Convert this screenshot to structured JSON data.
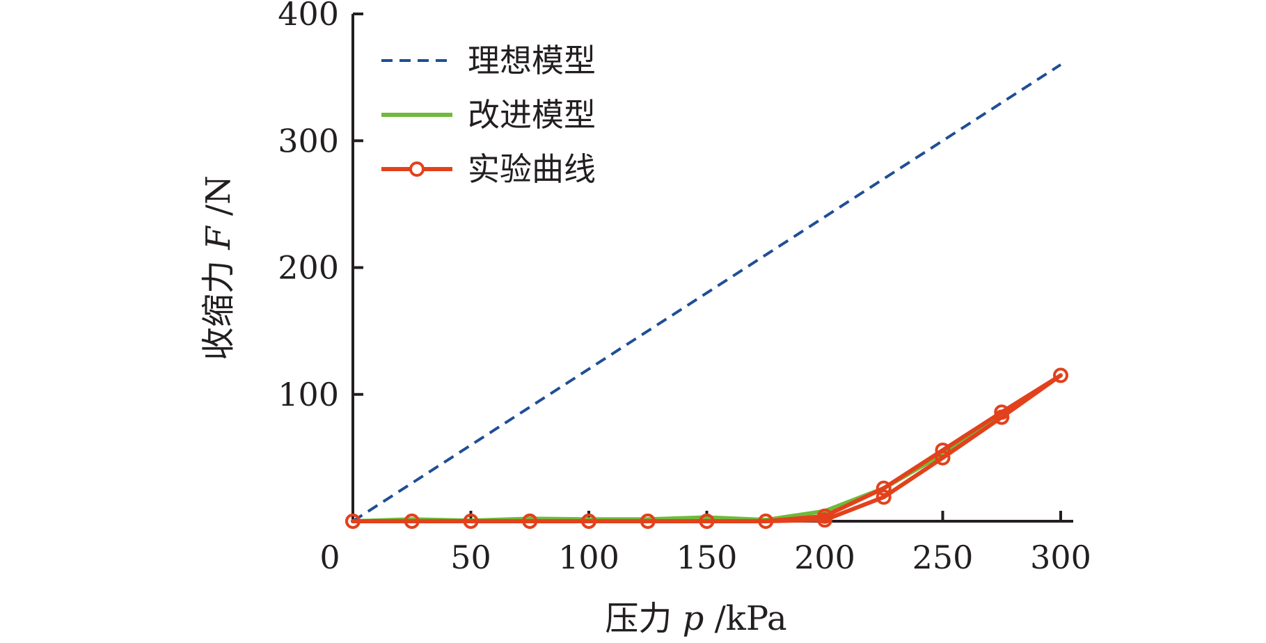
{
  "chart_data": {
    "type": "line",
    "xlabel": {
      "prefix": "压力 ",
      "symbol": "p",
      "unit": " /kPa"
    },
    "ylabel": {
      "prefix": "收缩力 ",
      "symbol": "F",
      "unit": " /N"
    },
    "xlim": [
      0,
      300
    ],
    "ylim": [
      0,
      400
    ],
    "x_ticks": [
      0,
      50,
      100,
      150,
      200,
      250,
      300
    ],
    "y_ticks": [
      100,
      200,
      300,
      400
    ],
    "grid": false,
    "legend_position": "top-left",
    "series": [
      {
        "name": "理想模型",
        "style": "dashed",
        "color": "#1f4e96",
        "points": [
          [
            0,
            0
          ],
          [
            300,
            360
          ]
        ]
      },
      {
        "name": "改进模型",
        "style": "solid",
        "color": "#6fba3a",
        "points": [
          [
            0,
            0
          ],
          [
            25,
            1.5
          ],
          [
            50,
            0.5
          ],
          [
            75,
            2
          ],
          [
            100,
            1.5
          ],
          [
            125,
            1.5
          ],
          [
            150,
            3
          ],
          [
            175,
            1
          ],
          [
            200,
            8
          ],
          [
            225,
            26
          ],
          [
            250,
            53
          ],
          [
            275,
            84
          ],
          [
            300,
            115
          ]
        ]
      },
      {
        "name": "实验曲线",
        "style": "solid-markers",
        "color": "#e2411c",
        "points": [
          [
            0,
            0
          ],
          [
            25,
            0
          ],
          [
            50,
            0
          ],
          [
            75,
            0
          ],
          [
            100,
            0
          ],
          [
            125,
            0
          ],
          [
            150,
            0
          ],
          [
            175,
            0
          ],
          [
            200,
            1
          ],
          [
            225,
            19
          ],
          [
            250,
            50
          ],
          [
            275,
            82
          ],
          [
            300,
            115
          ],
          [
            275,
            86
          ],
          [
            250,
            56
          ],
          [
            225,
            26
          ],
          [
            200,
            4
          ],
          [
            175,
            0
          ],
          [
            150,
            0
          ],
          [
            125,
            0
          ],
          [
            100,
            0
          ],
          [
            75,
            0
          ],
          [
            50,
            0
          ],
          [
            25,
            0
          ],
          [
            0,
            0
          ]
        ]
      }
    ]
  }
}
